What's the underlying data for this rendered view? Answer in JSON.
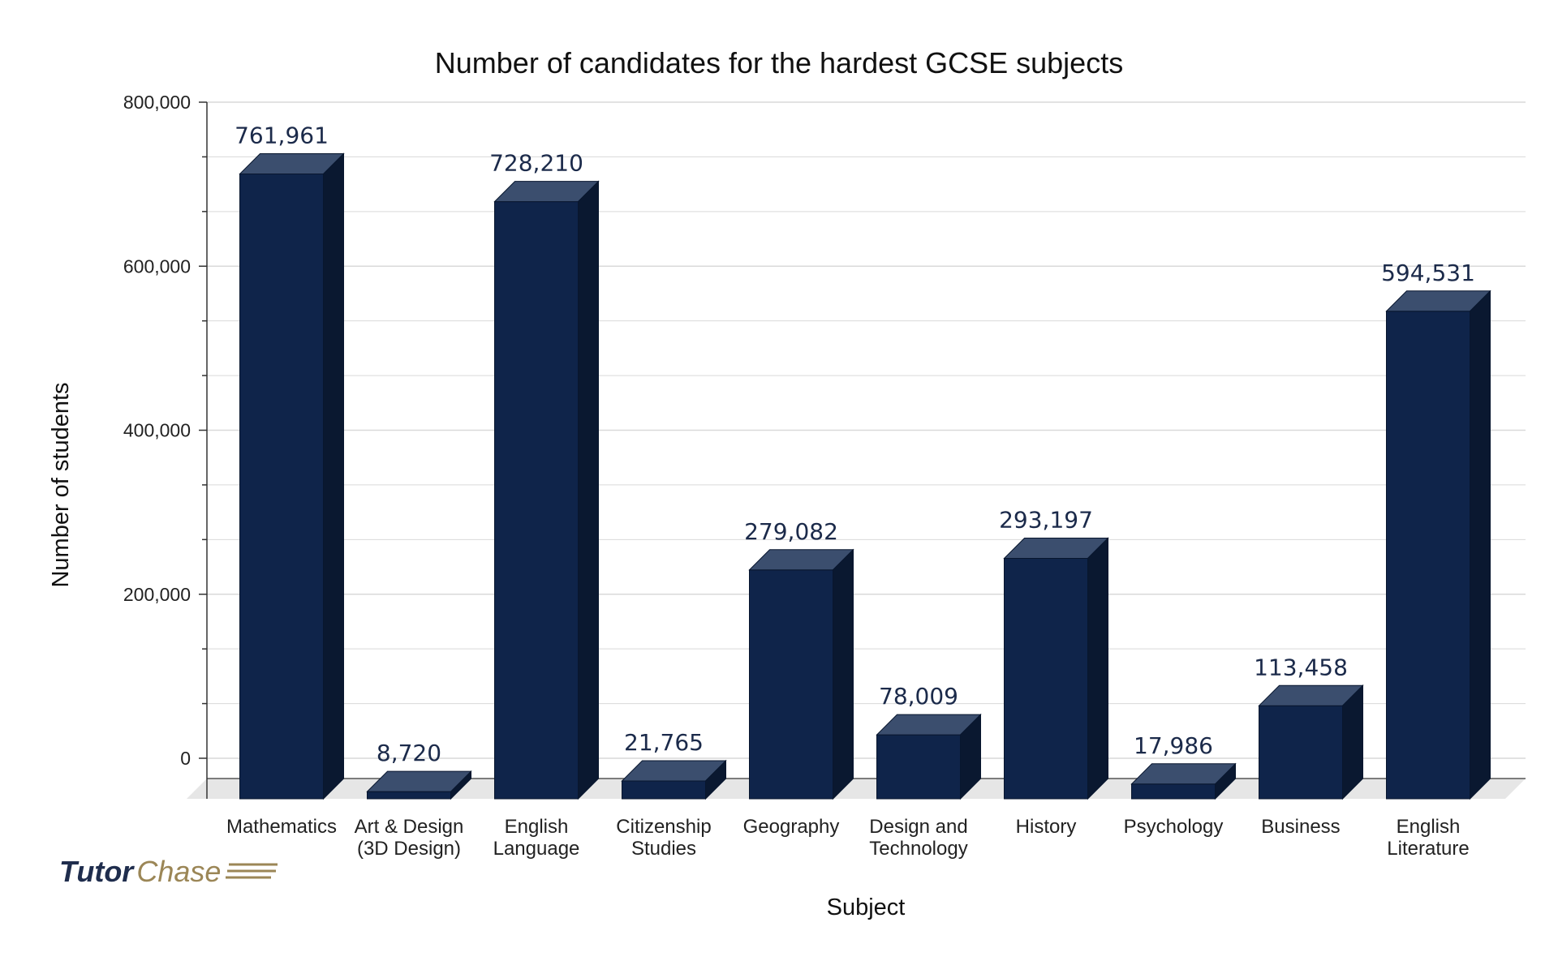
{
  "chart_data": {
    "type": "bar",
    "title": "Number of candidates for the hardest GCSE subjects",
    "xlabel": "Subject",
    "ylabel": "Number of students",
    "ylim": [
      0,
      800000
    ],
    "yticks": [
      0,
      200000,
      400000,
      600000,
      800000
    ],
    "ytick_labels": [
      "0",
      "200,000",
      "400,000",
      "600,000",
      "800,000"
    ],
    "grid": true,
    "legend": "none",
    "categories": [
      [
        "Mathematics"
      ],
      [
        "Art & Design",
        "(3D Design)"
      ],
      [
        "English",
        "Language"
      ],
      [
        "Citizenship",
        "Studies"
      ],
      [
        "Geography"
      ],
      [
        "Design and",
        "Technology"
      ],
      [
        "History"
      ],
      [
        "Psychology"
      ],
      [
        "Business"
      ],
      [
        "English",
        "Literature"
      ]
    ],
    "values": [
      761961,
      8720,
      728210,
      21765,
      279082,
      78009,
      293197,
      17986,
      113458,
      594531
    ],
    "data_labels": [
      "761,961",
      "8,720",
      "728,210",
      "21,765",
      "279,082",
      "78,009",
      "293,197",
      "17,986",
      "113,458",
      "594,531"
    ],
    "colors": {
      "bar_front": "#0f244a",
      "bar_top": "#3b4e6e",
      "bar_side": "#0a1830",
      "floor": "#e6e6e6",
      "grid": "#d9d9d9",
      "axis": "#333333"
    }
  },
  "watermark": {
    "part1": "Tutor",
    "part2": "Chase"
  }
}
